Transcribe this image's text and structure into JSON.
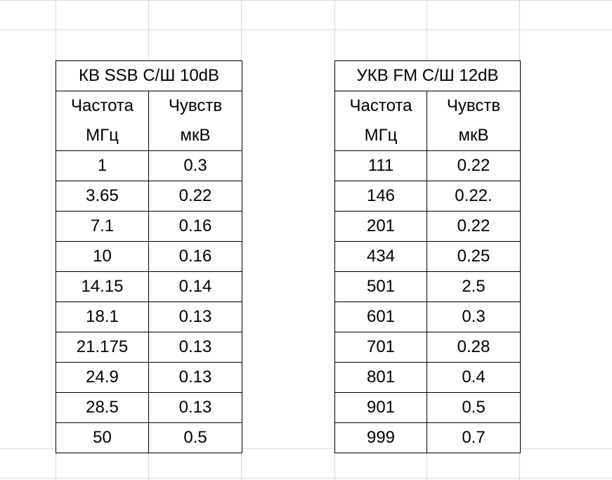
{
  "hf_table": {
    "title": "КВ SSB С/Ш 10dB",
    "col1_header": [
      "Частота",
      "МГц"
    ],
    "col2_header": [
      "Чувств",
      "мкВ"
    ],
    "rows": [
      [
        "1",
        "0.3"
      ],
      [
        "3.65",
        "0.22"
      ],
      [
        "7.1",
        "0.16"
      ],
      [
        "10",
        "0.16"
      ],
      [
        "14.15",
        "0.14"
      ],
      [
        "18.1",
        "0.13"
      ],
      [
        "21.175",
        "0.13"
      ],
      [
        "24.9",
        "0.13"
      ],
      [
        "28.5",
        "0.13"
      ],
      [
        "50",
        "0.5"
      ]
    ]
  },
  "vhf_table": {
    "title": "УКВ FM С/Ш 12dB",
    "col1_header": [
      "Частота",
      "МГц"
    ],
    "col2_header": [
      "Чувств",
      "мкВ"
    ],
    "rows": [
      [
        "111",
        "0.22"
      ],
      [
        "146",
        "0.22."
      ],
      [
        "201",
        "0.22"
      ],
      [
        "434",
        "0.25"
      ],
      [
        "501",
        "2.5"
      ],
      [
        "601",
        "0.3"
      ],
      [
        "701",
        "0.28"
      ],
      [
        "801",
        "0.4"
      ],
      [
        "901",
        "0.5"
      ],
      [
        "999",
        "0.7"
      ]
    ]
  },
  "colors": {
    "gridline": "#d9d9d9",
    "border": "#000000",
    "text": "#000000",
    "background": "#ffffff"
  }
}
